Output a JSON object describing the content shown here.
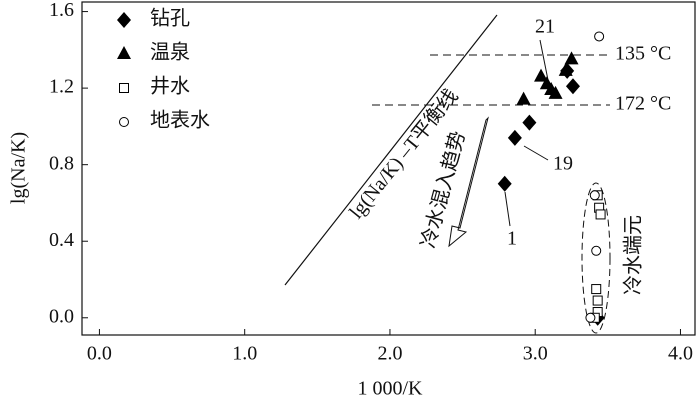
{
  "chart_data": {
    "type": "scatter",
    "x_label": "1 000/K",
    "y_label": "lg(Na/K)",
    "xlim": [
      -0.12,
      4.1
    ],
    "ylim": [
      -0.09,
      1.65
    ],
    "xticks": [
      {
        "value": 0,
        "label": "0.0"
      },
      {
        "value": 1,
        "label": "1.0"
      },
      {
        "value": 2,
        "label": "2.0"
      },
      {
        "value": 3,
        "label": "3.0"
      },
      {
        "value": 4,
        "label": "4.0"
      }
    ],
    "yticks": [
      {
        "value": 0,
        "label": "0.0"
      },
      0.4,
      0.8,
      1.2,
      {
        "value": 1.6,
        "label": "1.6"
      }
    ],
    "legend": "upper left",
    "series": [
      {
        "name": "钻孔",
        "marker": "diamond",
        "color": "#000000",
        "x": [
          2.79,
          2.86,
          2.96,
          3.22,
          3.26,
          3.43
        ],
        "y": [
          0.7,
          0.94,
          1.02,
          1.29,
          1.21,
          0.0
        ]
      },
      {
        "name": "温泉",
        "marker": "triangle",
        "color": "#000000",
        "x": [
          2.92,
          3.04,
          3.08,
          3.11,
          3.14,
          3.21,
          3.25
        ],
        "y": [
          1.14,
          1.26,
          1.22,
          1.19,
          1.17,
          1.29,
          1.35
        ]
      },
      {
        "name": "井水",
        "marker": "square",
        "color": "#000000",
        "x": [
          3.43,
          3.44,
          3.45,
          3.42,
          3.43,
          3.43,
          3.41
        ],
        "y": [
          0.64,
          0.575,
          0.54,
          0.15,
          0.09,
          0.03,
          0.0
        ]
      },
      {
        "name": "地表水",
        "marker": "circle",
        "color": "#000000",
        "x": [
          3.44,
          3.41,
          3.42,
          3.38
        ],
        "y": [
          1.47,
          0.64,
          0.35,
          0.0
        ]
      }
    ],
    "annotations": [
      "lg(Na/K) –T平衡线",
      "冷水混入趋势",
      "冷水端元",
      "135 °C",
      "172 °C",
      "21",
      "19",
      "1"
    ]
  }
}
